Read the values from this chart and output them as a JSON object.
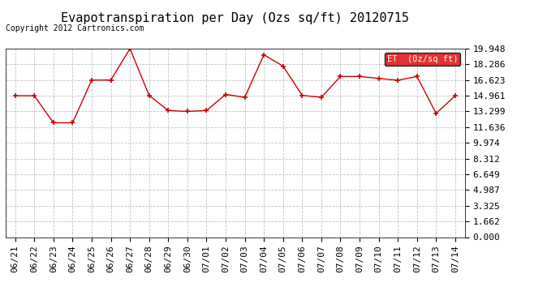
{
  "title": "Evapotranspiration per Day (Ozs sq/ft) 20120715",
  "copyright": "Copyright 2012 Cartronics.com",
  "legend_label": "ET  (0z/sq ft)",
  "x_labels": [
    "06/21",
    "06/22",
    "06/23",
    "06/24",
    "06/25",
    "06/26",
    "06/27",
    "06/28",
    "06/29",
    "06/30",
    "07/01",
    "07/02",
    "07/03",
    "07/04",
    "07/05",
    "07/06",
    "07/07",
    "07/08",
    "07/09",
    "07/10",
    "07/11",
    "07/12",
    "07/13",
    "07/14"
  ],
  "y_values": [
    14.961,
    14.961,
    12.1,
    12.1,
    16.623,
    16.623,
    19.948,
    15.0,
    13.4,
    13.3,
    13.4,
    15.1,
    14.8,
    19.3,
    18.1,
    15.0,
    14.8,
    17.0,
    17.0,
    16.8,
    16.6,
    17.0,
    13.1,
    14.961
  ],
  "y_ticks": [
    0.0,
    1.662,
    3.325,
    4.987,
    6.649,
    8.312,
    9.974,
    11.636,
    13.299,
    14.961,
    16.623,
    18.286,
    19.948
  ],
  "y_min": 0.0,
  "y_max": 19.948,
  "line_color": "#cc0000",
  "bg_color": "#ffffff",
  "plot_bg_color": "#ffffff",
  "grid_color": "#bbbbbb",
  "legend_bg": "#dd0000",
  "legend_text_color": "#ffffff",
  "title_fontsize": 11,
  "tick_fontsize": 8,
  "copyright_fontsize": 7
}
